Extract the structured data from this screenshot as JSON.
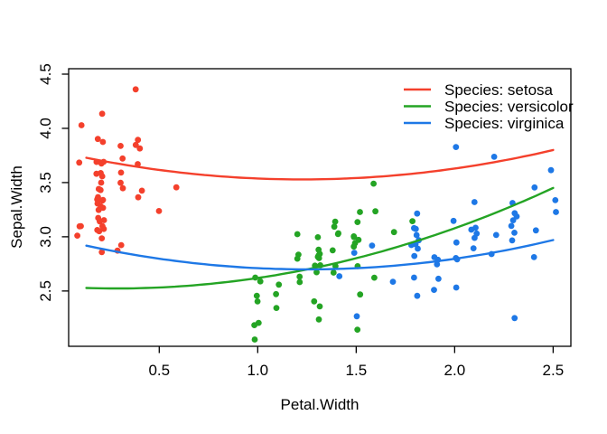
{
  "figure": {
    "background": "#FFFFFF",
    "axis_color": "#000000",
    "text_color": "#000000"
  },
  "chart_data": {
    "type": "scatter",
    "title": "",
    "xlabel": "Petal.Width",
    "ylabel": "Sepal.Width",
    "xlim": [
      0.04,
      2.59
    ],
    "ylim": [
      1.99,
      4.55
    ],
    "grid": false,
    "legend_position": "topright",
    "point_style": "filled-circle",
    "jitter": {
      "x": 0.02,
      "y": 0.1
    },
    "curve_x_range": [
      0.13,
      2.52
    ],
    "x_ticks": {
      "values": [
        0.5,
        1.0,
        1.5,
        2.0,
        2.5
      ],
      "labels": [
        "0.5",
        "1.0",
        "1.5",
        "2.0",
        "2.5"
      ]
    },
    "y_ticks": {
      "values": [
        2.5,
        3.0,
        3.5,
        4.0,
        4.5
      ],
      "labels": [
        "2.5",
        "3.0",
        "3.5",
        "4.0",
        "4.5"
      ]
    },
    "series": [
      {
        "name": "setosa",
        "legend_label": "Species: setosa",
        "color": "#F4402C",
        "fit_quadratic_coeffs": [
          3.779,
          -0.4083,
          0.1667
        ],
        "points": [
          [
            0.2,
            3.5
          ],
          [
            0.2,
            3.0
          ],
          [
            0.2,
            3.2
          ],
          [
            0.2,
            3.1
          ],
          [
            0.2,
            3.6
          ],
          [
            0.4,
            3.9
          ],
          [
            0.3,
            3.4
          ],
          [
            0.2,
            3.4
          ],
          [
            0.2,
            2.9
          ],
          [
            0.1,
            3.1
          ],
          [
            0.2,
            3.7
          ],
          [
            0.2,
            3.4
          ],
          [
            0.1,
            3.0
          ],
          [
            0.1,
            3.0
          ],
          [
            0.2,
            4.0
          ],
          [
            0.4,
            4.4
          ],
          [
            0.4,
            3.9
          ],
          [
            0.3,
            3.5
          ],
          [
            0.3,
            3.8
          ],
          [
            0.3,
            3.8
          ],
          [
            0.2,
            3.4
          ],
          [
            0.4,
            3.7
          ],
          [
            0.2,
            3.6
          ],
          [
            0.5,
            3.3
          ],
          [
            0.2,
            3.4
          ],
          [
            0.2,
            3.0
          ],
          [
            0.4,
            3.4
          ],
          [
            0.2,
            3.5
          ],
          [
            0.2,
            3.4
          ],
          [
            0.2,
            3.2
          ],
          [
            0.2,
            3.1
          ],
          [
            0.4,
            3.4
          ],
          [
            0.1,
            4.1
          ],
          [
            0.2,
            4.2
          ],
          [
            0.2,
            3.1
          ],
          [
            0.2,
            3.2
          ],
          [
            0.2,
            3.5
          ],
          [
            0.1,
            3.6
          ],
          [
            0.2,
            3.0
          ],
          [
            0.2,
            3.4
          ],
          [
            0.3,
            3.5
          ],
          [
            0.3,
            2.8
          ],
          [
            0.2,
            3.2
          ],
          [
            0.6,
            3.5
          ],
          [
            0.4,
            3.8
          ],
          [
            0.3,
            3.0
          ],
          [
            0.2,
            3.8
          ],
          [
            0.2,
            3.2
          ],
          [
            0.2,
            3.7
          ],
          [
            0.2,
            3.3
          ]
        ]
      },
      {
        "name": "versicolor",
        "legend_label": "Species: versicolor",
        "color": "#24A424",
        "fit_quadratic_coeffs": [
          2.5389,
          -0.1078,
          0.1889
        ],
        "points": [
          [
            1.4,
            3.2
          ],
          [
            1.5,
            3.2
          ],
          [
            1.5,
            3.1
          ],
          [
            1.3,
            2.3
          ],
          [
            1.5,
            2.8
          ],
          [
            1.3,
            2.8
          ],
          [
            1.6,
            3.3
          ],
          [
            1.0,
            2.4
          ],
          [
            1.3,
            2.9
          ],
          [
            1.4,
            2.7
          ],
          [
            1.0,
            2.0
          ],
          [
            1.5,
            3.0
          ],
          [
            1.0,
            2.2
          ],
          [
            1.4,
            2.9
          ],
          [
            1.3,
            2.9
          ],
          [
            1.4,
            3.1
          ],
          [
            1.5,
            3.0
          ],
          [
            1.0,
            2.7
          ],
          [
            1.5,
            2.2
          ],
          [
            1.1,
            2.5
          ],
          [
            1.8,
            3.2
          ],
          [
            1.3,
            2.8
          ],
          [
            1.5,
            2.5
          ],
          [
            1.2,
            2.8
          ],
          [
            1.3,
            2.9
          ],
          [
            1.4,
            3.0
          ],
          [
            1.4,
            2.8
          ],
          [
            1.7,
            3.0
          ],
          [
            1.5,
            2.9
          ],
          [
            1.0,
            2.6
          ],
          [
            1.1,
            2.4
          ],
          [
            1.0,
            2.4
          ],
          [
            1.2,
            2.7
          ],
          [
            1.6,
            2.7
          ],
          [
            1.5,
            3.0
          ],
          [
            1.6,
            3.4
          ],
          [
            1.5,
            3.1
          ],
          [
            1.3,
            2.3
          ],
          [
            1.3,
            3.0
          ],
          [
            1.3,
            2.5
          ],
          [
            1.2,
            2.6
          ],
          [
            1.4,
            3.0
          ],
          [
            1.2,
            2.6
          ],
          [
            1.0,
            2.3
          ],
          [
            1.3,
            2.7
          ],
          [
            1.2,
            3.0
          ],
          [
            1.3,
            2.9
          ],
          [
            1.3,
            2.9
          ],
          [
            1.1,
            2.5
          ],
          [
            1.3,
            2.8
          ]
        ]
      },
      {
        "name": "virginica",
        "legend_label": "Species: virginica",
        "color": "#1E78E6",
        "fit_quadratic_coeffs": [
          2.9717,
          -0.4347,
          0.1736
        ],
        "points": [
          [
            2.5,
            3.3
          ],
          [
            1.9,
            2.7
          ],
          [
            2.1,
            3.0
          ],
          [
            1.8,
            2.9
          ],
          [
            2.2,
            3.0
          ],
          [
            2.1,
            3.0
          ],
          [
            1.7,
            2.5
          ],
          [
            1.8,
            2.9
          ],
          [
            1.8,
            2.5
          ],
          [
            2.5,
            3.6
          ],
          [
            2.0,
            3.2
          ],
          [
            1.9,
            2.7
          ],
          [
            2.1,
            3.0
          ],
          [
            2.0,
            2.5
          ],
          [
            2.4,
            2.8
          ],
          [
            2.3,
            3.2
          ],
          [
            1.8,
            3.0
          ],
          [
            2.2,
            3.8
          ],
          [
            2.3,
            2.35
          ],
          [
            1.5,
            2.2
          ],
          [
            2.3,
            3.2
          ],
          [
            2.0,
            2.8
          ],
          [
            2.0,
            2.8
          ],
          [
            1.8,
            2.7
          ],
          [
            2.1,
            3.3
          ],
          [
            1.8,
            3.2
          ],
          [
            1.8,
            2.8
          ],
          [
            1.8,
            3.0
          ],
          [
            2.1,
            2.8
          ],
          [
            1.6,
            3.0
          ],
          [
            1.9,
            2.8
          ],
          [
            2.0,
            3.8
          ],
          [
            2.2,
            2.8
          ],
          [
            1.5,
            2.8
          ],
          [
            1.4,
            2.6
          ],
          [
            2.3,
            3.0
          ],
          [
            2.4,
            3.4
          ],
          [
            1.8,
            3.1
          ],
          [
            1.8,
            3.0
          ],
          [
            2.1,
            3.1
          ],
          [
            2.4,
            3.1
          ],
          [
            2.3,
            3.1
          ],
          [
            1.9,
            2.7
          ],
          [
            2.3,
            3.2
          ],
          [
            2.5,
            3.3
          ],
          [
            2.3,
            3.0
          ],
          [
            1.9,
            2.5
          ],
          [
            2.0,
            3.0
          ],
          [
            2.3,
            3.4
          ],
          [
            1.8,
            3.0
          ]
        ]
      }
    ]
  }
}
